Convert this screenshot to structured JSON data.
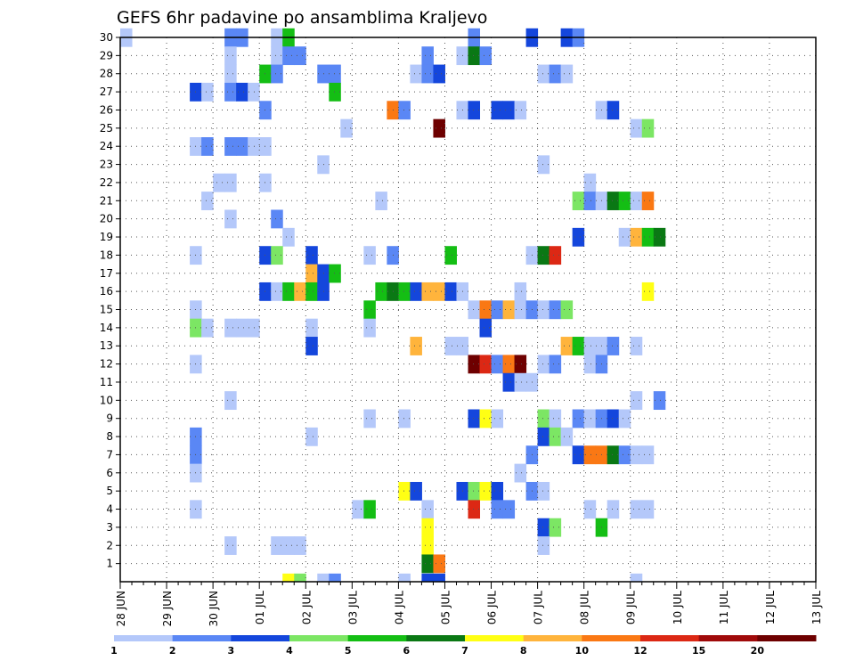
{
  "chart_data": {
    "type": "heatmap",
    "title": "GEFS 6hr padavine po ansamblima Kraljevo",
    "xlabel": "",
    "ylabel": "",
    "x_tick_labels": [
      "28 JUN",
      "29 JUN",
      "30 JUN",
      "01 JUL",
      "02 JUL",
      "03 JUL",
      "04 JUL",
      "05 JUL",
      "06 JUL",
      "07 JUL",
      "08 JUL",
      "09 JUL",
      "10 JUL",
      "11 JUL",
      "12 JUL",
      "13 JUL"
    ],
    "x_range_days": [
      0,
      15
    ],
    "y_tick_labels": [
      "1",
      "2",
      "3",
      "4",
      "5",
      "6",
      "7",
      "8",
      "9",
      "10",
      "11",
      "12",
      "13",
      "14",
      "15",
      "16",
      "17",
      "18",
      "19",
      "20",
      "21",
      "22",
      "23",
      "24",
      "25",
      "26",
      "27",
      "28",
      "29",
      "30"
    ],
    "y_range": [
      0,
      30
    ],
    "grid": true,
    "time_step_hours": 6,
    "legend": {
      "placement": "bottom",
      "labels": [
        "1",
        "2",
        "3",
        "4",
        "5",
        "6",
        "7",
        "8",
        "10",
        "12",
        "15",
        "20"
      ],
      "colors": [
        "#b4c8fa",
        "#5a87f5",
        "#1446dc",
        "#7ce664",
        "#14be14",
        "#0a7814",
        "#ffff14",
        "#ffb43c",
        "#fa7814",
        "#dc2814",
        "#a00a0a",
        "#6e0000"
      ]
    },
    "cell_value_meaning": "color class index 1-12 matching legend order",
    "cells": [
      [
        0,
        30,
        1
      ],
      [
        9,
        30,
        2
      ],
      [
        10,
        30,
        2
      ],
      [
        13,
        30,
        1
      ],
      [
        14,
        30,
        5
      ],
      [
        30,
        30,
        2
      ],
      [
        35,
        30,
        3
      ],
      [
        38,
        30,
        3
      ],
      [
        39,
        30,
        2
      ],
      [
        9,
        29,
        1
      ],
      [
        13,
        29,
        1
      ],
      [
        14,
        29,
        2
      ],
      [
        15,
        29,
        2
      ],
      [
        26,
        29,
        2
      ],
      [
        29,
        29,
        1
      ],
      [
        30,
        29,
        6
      ],
      [
        31,
        29,
        2
      ],
      [
        9,
        28,
        1
      ],
      [
        12,
        28,
        5
      ],
      [
        13,
        28,
        2
      ],
      [
        17,
        28,
        2
      ],
      [
        18,
        28,
        2
      ],
      [
        25,
        28,
        1
      ],
      [
        26,
        28,
        2
      ],
      [
        27,
        28,
        3
      ],
      [
        36,
        28,
        1
      ],
      [
        37,
        28,
        2
      ],
      [
        38,
        28,
        1
      ],
      [
        6,
        27,
        3
      ],
      [
        7,
        27,
        1
      ],
      [
        9,
        27,
        2
      ],
      [
        10,
        27,
        3
      ],
      [
        11,
        27,
        1
      ],
      [
        18,
        27,
        5
      ],
      [
        12,
        26,
        2
      ],
      [
        23,
        26,
        9
      ],
      [
        24,
        26,
        2
      ],
      [
        29,
        26,
        1
      ],
      [
        30,
        26,
        3
      ],
      [
        32,
        26,
        3
      ],
      [
        33,
        26,
        3
      ],
      [
        34,
        26,
        1
      ],
      [
        41,
        26,
        1
      ],
      [
        42,
        26,
        3
      ],
      [
        19,
        25,
        1
      ],
      [
        27,
        25,
        12
      ],
      [
        44,
        25,
        1
      ],
      [
        45,
        25,
        4
      ],
      [
        6,
        24,
        1
      ],
      [
        7,
        24,
        2
      ],
      [
        9,
        24,
        2
      ],
      [
        10,
        24,
        2
      ],
      [
        11,
        24,
        1
      ],
      [
        12,
        24,
        1
      ],
      [
        17,
        23,
        1
      ],
      [
        36,
        23,
        1
      ],
      [
        8,
        22,
        1
      ],
      [
        9,
        22,
        1
      ],
      [
        12,
        22,
        1
      ],
      [
        40,
        22,
        1
      ],
      [
        7,
        21,
        1
      ],
      [
        22,
        21,
        1
      ],
      [
        39,
        21,
        4
      ],
      [
        40,
        21,
        2
      ],
      [
        41,
        21,
        1
      ],
      [
        42,
        21,
        6
      ],
      [
        43,
        21,
        5
      ],
      [
        44,
        21,
        1
      ],
      [
        45,
        21,
        9
      ],
      [
        9,
        20,
        1
      ],
      [
        13,
        20,
        2
      ],
      [
        14,
        19,
        1
      ],
      [
        39,
        19,
        3
      ],
      [
        43,
        19,
        1
      ],
      [
        44,
        19,
        8
      ],
      [
        45,
        19,
        5
      ],
      [
        46,
        19,
        6
      ],
      [
        6,
        18,
        1
      ],
      [
        12,
        18,
        3
      ],
      [
        13,
        18,
        4
      ],
      [
        16,
        18,
        3
      ],
      [
        21,
        18,
        1
      ],
      [
        23,
        18,
        2
      ],
      [
        28,
        18,
        5
      ],
      [
        35,
        18,
        1
      ],
      [
        36,
        18,
        6
      ],
      [
        37,
        18,
        10
      ],
      [
        16,
        17,
        8
      ],
      [
        17,
        17,
        3
      ],
      [
        18,
        17,
        5
      ],
      [
        12,
        16,
        3
      ],
      [
        13,
        16,
        1
      ],
      [
        14,
        16,
        5
      ],
      [
        15,
        16,
        8
      ],
      [
        16,
        16,
        5
      ],
      [
        17,
        16,
        3
      ],
      [
        22,
        16,
        5
      ],
      [
        23,
        16,
        6
      ],
      [
        24,
        16,
        5
      ],
      [
        25,
        16,
        3
      ],
      [
        26,
        16,
        8
      ],
      [
        27,
        16,
        8
      ],
      [
        28,
        16,
        3
      ],
      [
        29,
        16,
        1
      ],
      [
        34,
        16,
        1
      ],
      [
        45,
        16,
        7
      ],
      [
        6,
        15,
        1
      ],
      [
        21,
        15,
        5
      ],
      [
        30,
        15,
        1
      ],
      [
        31,
        15,
        9
      ],
      [
        32,
        15,
        2
      ],
      [
        33,
        15,
        8
      ],
      [
        34,
        15,
        1
      ],
      [
        35,
        15,
        2
      ],
      [
        36,
        15,
        1
      ],
      [
        37,
        15,
        2
      ],
      [
        38,
        15,
        4
      ],
      [
        6,
        14,
        4
      ],
      [
        7,
        14,
        1
      ],
      [
        9,
        14,
        1
      ],
      [
        10,
        14,
        1
      ],
      [
        11,
        14,
        1
      ],
      [
        16,
        14,
        1
      ],
      [
        21,
        14,
        1
      ],
      [
        31,
        14,
        3
      ],
      [
        16,
        13,
        3
      ],
      [
        25,
        13,
        8
      ],
      [
        28,
        13,
        1
      ],
      [
        29,
        13,
        1
      ],
      [
        38,
        13,
        8
      ],
      [
        39,
        13,
        5
      ],
      [
        40,
        13,
        1
      ],
      [
        41,
        13,
        1
      ],
      [
        42,
        13,
        2
      ],
      [
        44,
        13,
        1
      ],
      [
        6,
        12,
        1
      ],
      [
        30,
        12,
        12
      ],
      [
        31,
        12,
        10
      ],
      [
        32,
        12,
        2
      ],
      [
        33,
        12,
        9
      ],
      [
        34,
        12,
        12
      ],
      [
        36,
        12,
        1
      ],
      [
        37,
        12,
        2
      ],
      [
        40,
        12,
        1
      ],
      [
        41,
        12,
        2
      ],
      [
        33,
        11,
        3
      ],
      [
        34,
        11,
        1
      ],
      [
        35,
        11,
        1
      ],
      [
        9,
        10,
        1
      ],
      [
        44,
        10,
        1
      ],
      [
        46,
        10,
        2
      ],
      [
        21,
        9,
        1
      ],
      [
        24,
        9,
        1
      ],
      [
        30,
        9,
        3
      ],
      [
        31,
        9,
        7
      ],
      [
        32,
        9,
        1
      ],
      [
        36,
        9,
        4
      ],
      [
        37,
        9,
        1
      ],
      [
        39,
        9,
        2
      ],
      [
        40,
        9,
        1
      ],
      [
        41,
        9,
        2
      ],
      [
        42,
        9,
        3
      ],
      [
        43,
        9,
        1
      ],
      [
        6,
        8,
        2
      ],
      [
        16,
        8,
        1
      ],
      [
        36,
        8,
        3
      ],
      [
        37,
        8,
        4
      ],
      [
        38,
        8,
        1
      ],
      [
        6,
        7,
        2
      ],
      [
        35,
        7,
        2
      ],
      [
        39,
        7,
        3
      ],
      [
        40,
        7,
        9
      ],
      [
        41,
        7,
        9
      ],
      [
        42,
        7,
        6
      ],
      [
        43,
        7,
        2
      ],
      [
        44,
        7,
        1
      ],
      [
        45,
        7,
        1
      ],
      [
        6,
        6,
        1
      ],
      [
        34,
        6,
        1
      ],
      [
        24,
        5,
        7
      ],
      [
        25,
        5,
        3
      ],
      [
        29,
        5,
        3
      ],
      [
        30,
        5,
        4
      ],
      [
        31,
        5,
        7
      ],
      [
        32,
        5,
        3
      ],
      [
        35,
        5,
        2
      ],
      [
        36,
        5,
        1
      ],
      [
        6,
        4,
        1
      ],
      [
        20,
        4,
        1
      ],
      [
        21,
        4,
        5
      ],
      [
        26,
        4,
        1
      ],
      [
        30,
        4,
        10
      ],
      [
        32,
        4,
        2
      ],
      [
        33,
        4,
        2
      ],
      [
        40,
        4,
        1
      ],
      [
        42,
        4,
        1
      ],
      [
        44,
        4,
        1
      ],
      [
        45,
        4,
        1
      ],
      [
        26,
        3,
        7
      ],
      [
        36,
        3,
        3
      ],
      [
        37,
        3,
        4
      ],
      [
        41,
        3,
        5
      ],
      [
        9,
        2,
        1
      ],
      [
        13,
        2,
        1
      ],
      [
        14,
        2,
        1
      ],
      [
        15,
        2,
        1
      ],
      [
        26,
        2,
        7
      ],
      [
        36,
        2,
        1
      ],
      [
        26,
        1,
        6
      ],
      [
        27,
        1,
        9
      ],
      [
        14,
        0,
        7
      ],
      [
        15,
        0,
        4
      ],
      [
        17,
        0,
        1
      ],
      [
        18,
        0,
        2
      ],
      [
        24,
        0,
        1
      ],
      [
        26,
        0,
        3
      ],
      [
        27,
        0,
        3
      ],
      [
        44,
        0,
        1
      ]
    ]
  }
}
